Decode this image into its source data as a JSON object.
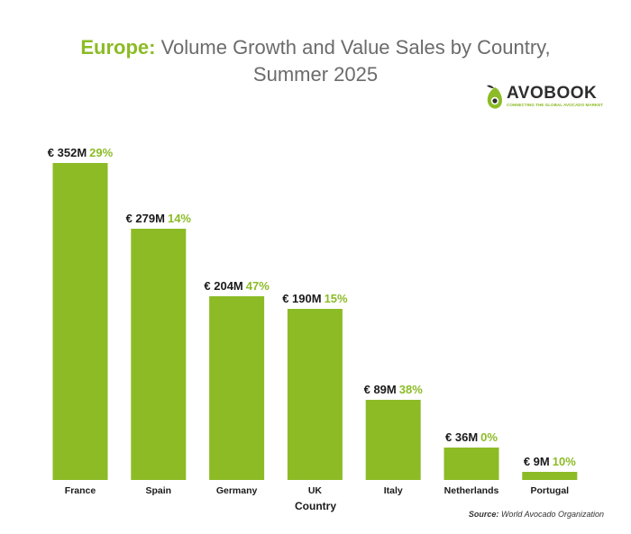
{
  "title": {
    "highlight": "Europe:",
    "line1": "Volume Growth and Value Sales by Country,",
    "line2": "Summer 2025"
  },
  "logo": {
    "name": "AVOBOOK",
    "tagline": "CONNECTING THE GLOBAL AVOCADO MARKET"
  },
  "source": {
    "label": "Source:",
    "text": "World Avocado Organization"
  },
  "colors": {
    "bar": "#8cbb26",
    "growth_text": "#8cbb26",
    "value_text": "#1a1a1a"
  },
  "chart_data": {
    "type": "bar",
    "xlabel": "Country",
    "ylabel": "",
    "categories": [
      "France",
      "Spain",
      "Germany",
      "UK",
      "Italy",
      "Netherlands",
      "Portugal"
    ],
    "series": [
      {
        "values": [
          352,
          279,
          204,
          190,
          89,
          36,
          9
        ]
      }
    ],
    "value_labels": [
      "€ 352M",
      "€ 279M",
      "€ 204M",
      "€ 190M",
      "€ 89M",
      "€ 36M",
      "€ 9M"
    ],
    "growth_labels": [
      "29%",
      "14%",
      "47%",
      "15%",
      "38%",
      "0%",
      "10%"
    ],
    "ylim": [
      0,
      352
    ],
    "grid": false,
    "legend": "none"
  }
}
